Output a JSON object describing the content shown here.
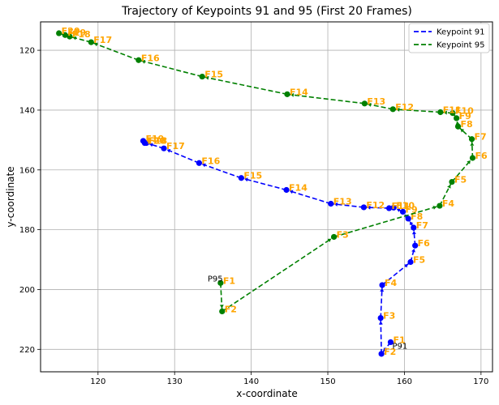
{
  "chart_data": {
    "type": "line",
    "title": "Trajectory of Keypoints 91 and 95 (First 20 Frames)",
    "xlabel": "x-coordinate",
    "ylabel": "y-coordinate",
    "xlim": [
      112.5,
      171.5
    ],
    "ylim": [
      227.5,
      110.5
    ],
    "y_inverted": true,
    "grid": true,
    "legend_position": "top-right",
    "xticks": [
      120,
      130,
      140,
      150,
      160,
      170
    ],
    "yticks": [
      120,
      140,
      160,
      180,
      200,
      220
    ],
    "series": [
      {
        "name": "Keypoint 91",
        "color": "#0000ff",
        "linestyle": "dashed",
        "start_label": "P91",
        "frames": [
          "F1",
          "F2",
          "F3",
          "F4",
          "F5",
          "F6",
          "F7",
          "F8",
          "F9",
          "F10",
          "F11",
          "F12",
          "F13",
          "F14",
          "F15",
          "F16",
          "F17",
          "F18",
          "F19",
          "F20"
        ],
        "x": [
          158.2,
          157.0,
          156.9,
          157.1,
          160.8,
          161.4,
          161.2,
          160.5,
          159.8,
          158.6,
          158.0,
          154.7,
          150.4,
          144.6,
          138.7,
          133.2,
          128.6,
          126.3,
          125.9,
          126.1
        ],
        "y": [
          217.6,
          221.5,
          209.5,
          198.5,
          190.8,
          185.3,
          179.3,
          176.3,
          174.0,
          172.6,
          172.8,
          172.5,
          171.3,
          166.7,
          162.7,
          157.7,
          152.8,
          151.0,
          150.3,
          151.0
        ]
      },
      {
        "name": "Keypoint 95",
        "color": "#008000",
        "linestyle": "dashed",
        "start_label": "P95",
        "frames": [
          "F1",
          "F2",
          "F3",
          "F4",
          "F5",
          "F6",
          "F7",
          "F8",
          "F9",
          "F10",
          "F11",
          "F12",
          "F13",
          "F14",
          "F15",
          "F16",
          "F17",
          "F18",
          "F19",
          "F20"
        ],
        "x": [
          136.0,
          136.2,
          150.8,
          164.6,
          166.2,
          168.9,
          168.8,
          167.0,
          166.8,
          166.3,
          164.7,
          158.5,
          154.8,
          144.7,
          133.6,
          125.3,
          119.1,
          116.3,
          115.7,
          114.9
        ],
        "y": [
          197.8,
          207.3,
          182.4,
          172.0,
          164.0,
          156.0,
          149.7,
          145.5,
          142.7,
          141.0,
          140.7,
          139.7,
          137.8,
          134.7,
          128.8,
          123.3,
          117.3,
          115.4,
          114.9,
          114.3
        ]
      }
    ]
  }
}
